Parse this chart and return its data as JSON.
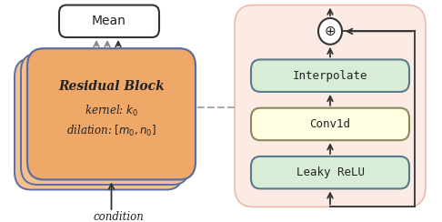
{
  "bg_color": "#ffffff",
  "left_block_fill": "#f0a868",
  "left_block_border": "#5a6ea0",
  "left_block_shadow_fill": "#f5c090",
  "mean_box_fill": "#ffffff",
  "mean_box_border": "#333333",
  "right_panel_fill": "#fce8e0",
  "right_panel_border": "#e8b0a0",
  "interpolate_fill": "#d8edd8",
  "interpolate_border": "#5a7a8a",
  "conv1d_fill": "#fefee0",
  "conv1d_border": "#8a8a5a",
  "leaky_fill": "#d8edd8",
  "leaky_border": "#5a7a8a",
  "arrow_dark": "#333333",
  "arrow_gray": "#888888",
  "dashed_color": "#aaaaaa",
  "text_dark": "#222222",
  "residual_text": "Residual Block",
  "kernel_text": "kernel: $k_0$",
  "dilation_text": "dilation: $[m_0,n_0]$",
  "mean_text": "Mean",
  "interpolate_text": "Interpolate",
  "conv1d_text": "Conv1d",
  "leaky_text": "Leaky ReLU",
  "condition_text": "condition"
}
